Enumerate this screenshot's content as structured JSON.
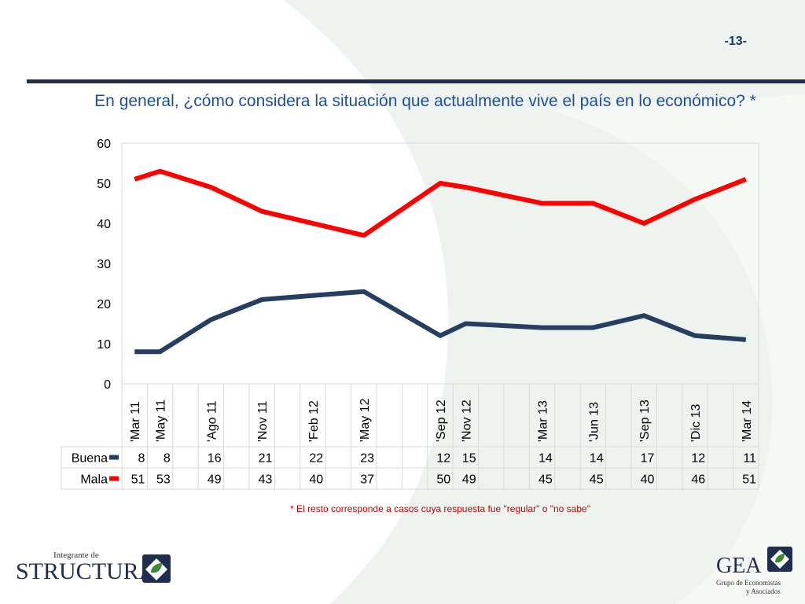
{
  "header": {
    "page_number": "-13-"
  },
  "title": "En general, ¿cómo considera la situación que actualmente vive el país en lo económico? *",
  "footnote": "* El resto corresponde a casos cuya respuesta fue \"regular\" o \"no sabe\"",
  "logos": {
    "structura_top": "Integrante de",
    "structura_main": "STRUCTURA",
    "gea_main": "GEA",
    "gea_sub1": "Grupo de Economistas",
    "gea_sub2": "y Asociados"
  },
  "colors": {
    "buena": "#243f60",
    "mala": "#ff0000",
    "title": "#1f4e99",
    "rule": "#1f2d4e"
  },
  "chart_data": {
    "type": "line",
    "title": "",
    "xlabel": "",
    "ylabel": "",
    "ylim": [
      0,
      60
    ],
    "yticks": [
      0,
      10,
      20,
      30,
      40,
      50,
      60
    ],
    "grid": false,
    "legend": "table",
    "categories": [
      "'Mar 11",
      "'May 11",
      "",
      "'Ago 11",
      "",
      "'Nov 11",
      "",
      "'Feb 12",
      "",
      "'May 12",
      "",
      "",
      "'Sep 12",
      "'Nov 12",
      "",
      "",
      "'Mar 13",
      "",
      "'Jun 13",
      "",
      "'Sep 13",
      "",
      "'Dic 13",
      "",
      "'Mar 14"
    ],
    "series": [
      {
        "name": "Buena",
        "values": [
          8,
          8,
          null,
          16,
          null,
          21,
          null,
          22,
          null,
          23,
          null,
          null,
          12,
          15,
          null,
          null,
          14,
          null,
          14,
          null,
          17,
          null,
          12,
          null,
          11
        ]
      },
      {
        "name": "Mala",
        "values": [
          51,
          53,
          null,
          49,
          null,
          43,
          null,
          40,
          null,
          37,
          null,
          null,
          50,
          49,
          null,
          null,
          45,
          null,
          45,
          null,
          40,
          null,
          46,
          null,
          51
        ]
      }
    ]
  }
}
